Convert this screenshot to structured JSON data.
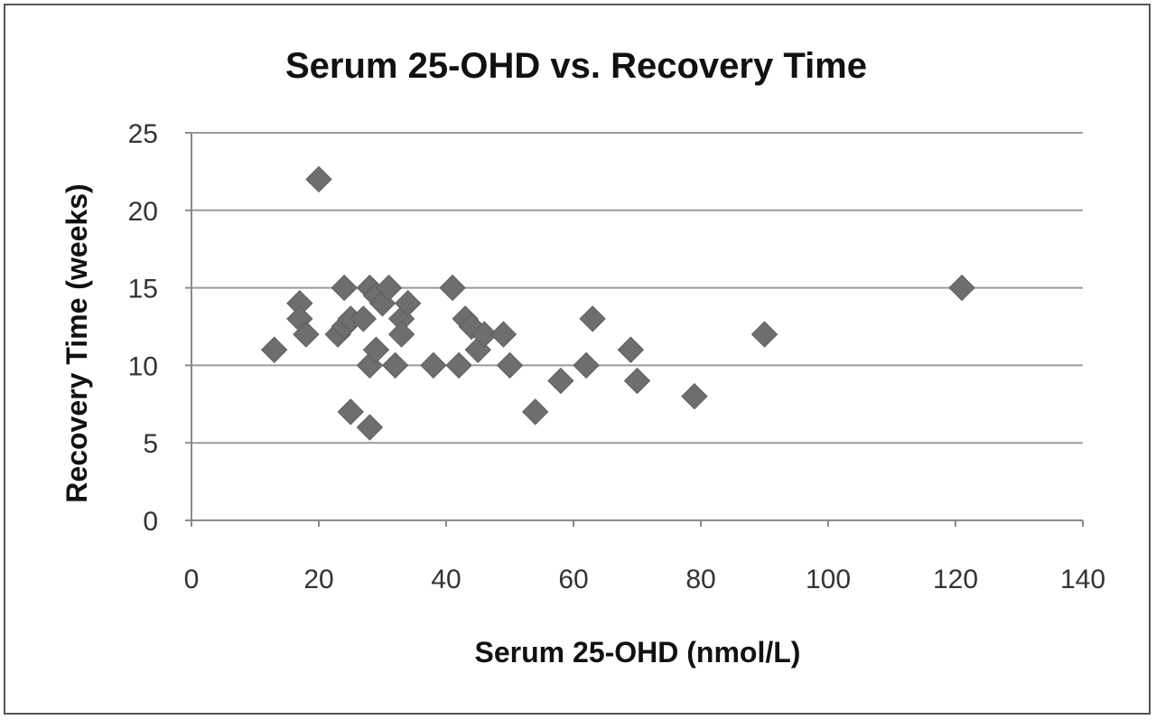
{
  "chart_data": {
    "type": "scatter",
    "title": "Serum 25-OHD vs. Recovery Time",
    "xlabel": "Serum 25-OHD (nmol/L)",
    "ylabel": "Recovery Time (weeks)",
    "xlim": [
      0,
      140
    ],
    "ylim": [
      0,
      25
    ],
    "xticks": [
      0,
      20,
      40,
      60,
      80,
      100,
      120,
      140
    ],
    "yticks": [
      0,
      5,
      10,
      15,
      20,
      25
    ],
    "grid": "horizontal",
    "legend": "none",
    "marker": "diamond",
    "marker_color": "#6e6e6e",
    "points": [
      {
        "x": 13,
        "y": 11
      },
      {
        "x": 17,
        "y": 14
      },
      {
        "x": 17,
        "y": 13
      },
      {
        "x": 18,
        "y": 12
      },
      {
        "x": 20,
        "y": 22
      },
      {
        "x": 23,
        "y": 12
      },
      {
        "x": 24,
        "y": 15
      },
      {
        "x": 24,
        "y": 12.5
      },
      {
        "x": 25,
        "y": 13
      },
      {
        "x": 25,
        "y": 7
      },
      {
        "x": 27,
        "y": 13
      },
      {
        "x": 28,
        "y": 15
      },
      {
        "x": 28,
        "y": 10
      },
      {
        "x": 28,
        "y": 6
      },
      {
        "x": 29,
        "y": 14.5
      },
      {
        "x": 29,
        "y": 11
      },
      {
        "x": 30,
        "y": 14
      },
      {
        "x": 31,
        "y": 15
      },
      {
        "x": 32,
        "y": 10
      },
      {
        "x": 33,
        "y": 13
      },
      {
        "x": 33,
        "y": 12
      },
      {
        "x": 34,
        "y": 14
      },
      {
        "x": 38,
        "y": 10
      },
      {
        "x": 41,
        "y": 15
      },
      {
        "x": 42,
        "y": 10
      },
      {
        "x": 43,
        "y": 13
      },
      {
        "x": 44,
        "y": 12.5
      },
      {
        "x": 45,
        "y": 11
      },
      {
        "x": 46,
        "y": 12
      },
      {
        "x": 49,
        "y": 12
      },
      {
        "x": 50,
        "y": 10
      },
      {
        "x": 54,
        "y": 7
      },
      {
        "x": 58,
        "y": 9
      },
      {
        "x": 62,
        "y": 10
      },
      {
        "x": 63,
        "y": 13
      },
      {
        "x": 69,
        "y": 11
      },
      {
        "x": 70,
        "y": 9
      },
      {
        "x": 79,
        "y": 8
      },
      {
        "x": 90,
        "y": 12
      },
      {
        "x": 121,
        "y": 15
      }
    ]
  }
}
